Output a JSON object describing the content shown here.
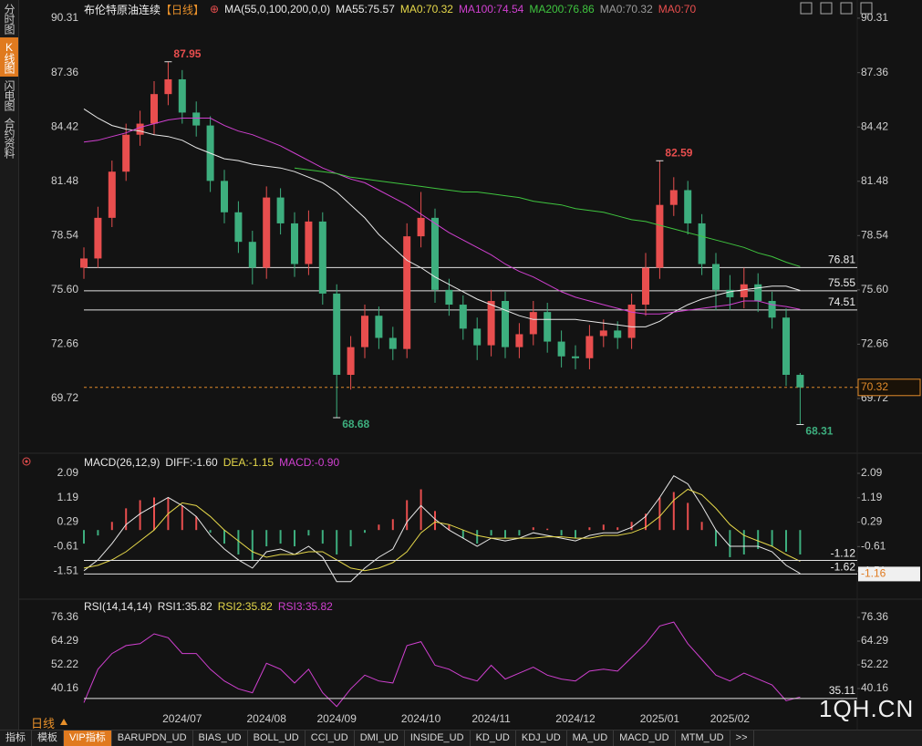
{
  "chart_data": {
    "type": "candlestick",
    "title": "布伦特原油连续",
    "period": "【日线】",
    "ma_params": "MA(55,0,100,200,0,0)",
    "ma_legend": [
      {
        "label": "MA55:75.57",
        "color": "#e8e8e8"
      },
      {
        "label": "MA0:70.32",
        "color": "#e6d84a"
      },
      {
        "label": "MA100:74.54",
        "color": "#d040d0"
      },
      {
        "label": "MA200:76.86",
        "color": "#3fc43f"
      },
      {
        "label": "MA0:70.32",
        "color": "#9a9a9a"
      },
      {
        "label": "MA0:70",
        "color": "#e84e4e"
      }
    ],
    "up_color": "#e84e4e",
    "down_color": "#3dae7e",
    "categories": [
      null,
      null,
      null,
      null,
      null,
      null,
      null,
      "2024/07",
      null,
      null,
      null,
      null,
      null,
      "2024/08",
      null,
      null,
      null,
      null,
      "2024/09",
      null,
      null,
      null,
      null,
      null,
      "2024/10",
      null,
      null,
      null,
      null,
      "2024/11",
      null,
      null,
      null,
      null,
      null,
      "2024/12",
      null,
      null,
      null,
      null,
      null,
      "2025/01",
      null,
      null,
      null,
      null,
      "2025/02",
      null,
      null,
      null,
      null,
      null
    ],
    "open": [
      76.8,
      77.3,
      79.5,
      82.0,
      84.0,
      84.6,
      86.2,
      87.0,
      85.2,
      84.5,
      81.5,
      79.8,
      78.2,
      76.8,
      80.6,
      79.2,
      77.0,
      79.3,
      75.4,
      71.0,
      72.5,
      74.2,
      73.0,
      72.4,
      78.5,
      79.5,
      75.6,
      74.8,
      73.5,
      72.6,
      75.0,
      72.5,
      73.2,
      74.4,
      72.8,
      72.0,
      71.9,
      73.1,
      73.4,
      73.0,
      74.8,
      76.8,
      80.2,
      81.0,
      79.2,
      77.0,
      75.6,
      75.2,
      75.9,
      75.0,
      74.1,
      71.0
    ],
    "high": [
      77.9,
      80.1,
      82.6,
      84.6,
      85.3,
      86.9,
      87.95,
      87.5,
      85.8,
      85.0,
      82.1,
      80.4,
      78.8,
      81.2,
      81.1,
      79.8,
      79.9,
      79.8,
      75.9,
      73.1,
      74.8,
      74.7,
      73.6,
      79.2,
      80.9,
      80.0,
      76.2,
      75.3,
      74.1,
      75.6,
      75.5,
      73.8,
      75.0,
      74.9,
      73.4,
      72.6,
      73.7,
      74.0,
      73.9,
      75.4,
      77.6,
      82.59,
      81.7,
      81.5,
      79.7,
      77.6,
      76.4,
      76.8,
      76.5,
      75.5,
      74.6,
      71.1
    ],
    "low": [
      76.2,
      76.8,
      79.0,
      81.5,
      83.4,
      84.0,
      85.6,
      84.6,
      83.9,
      80.9,
      79.2,
      77.6,
      75.9,
      76.2,
      78.6,
      76.3,
      76.4,
      74.8,
      68.68,
      70.2,
      71.9,
      72.4,
      71.8,
      71.9,
      77.9,
      74.9,
      74.2,
      72.9,
      71.8,
      72.0,
      71.9,
      71.9,
      72.6,
      72.2,
      71.4,
      71.3,
      71.3,
      72.5,
      72.4,
      72.4,
      74.2,
      76.2,
      79.6,
      78.6,
      76.4,
      74.5,
      74.5,
      74.6,
      74.4,
      73.5,
      70.4,
      68.31
    ],
    "close": [
      77.3,
      79.5,
      82.0,
      84.0,
      84.6,
      86.2,
      87.0,
      85.2,
      84.5,
      81.5,
      79.8,
      78.2,
      76.8,
      80.6,
      79.2,
      77.0,
      79.3,
      75.4,
      71.0,
      72.5,
      74.2,
      73.0,
      72.4,
      78.5,
      79.5,
      75.6,
      74.8,
      73.5,
      72.6,
      75.0,
      72.5,
      73.2,
      74.4,
      72.8,
      72.0,
      71.9,
      73.1,
      73.4,
      73.0,
      74.8,
      76.8,
      80.2,
      81.0,
      79.2,
      77.0,
      75.6,
      75.2,
      75.9,
      75.0,
      74.1,
      71.0,
      70.32
    ],
    "ma_lines": [
      {
        "color": "#e8e8e8",
        "values": [
          85.4,
          84.9,
          84.5,
          84.3,
          84.2,
          84.0,
          83.9,
          83.7,
          83.3,
          83.0,
          82.7,
          82.6,
          82.4,
          82.3,
          82.2,
          82.0,
          81.7,
          81.4,
          80.9,
          80.2,
          79.5,
          78.6,
          77.9,
          77.2,
          76.8,
          76.3,
          75.9,
          75.5,
          75.1,
          74.8,
          74.5,
          74.2,
          74.0,
          74.0,
          74.0,
          74.0,
          73.9,
          73.8,
          73.7,
          73.6,
          73.6,
          73.9,
          74.4,
          74.8,
          75.1,
          75.3,
          75.5,
          75.6,
          75.7,
          75.8,
          75.8,
          75.57
        ]
      },
      {
        "color": "#d040d0",
        "values": [
          83.6,
          83.7,
          83.9,
          84.1,
          84.4,
          84.6,
          84.8,
          84.9,
          84.9,
          84.9,
          84.5,
          84.2,
          84.0,
          83.7,
          83.4,
          83.0,
          82.6,
          82.2,
          81.9,
          81.6,
          81.4,
          81.0,
          80.6,
          80.2,
          79.7,
          79.2,
          78.7,
          78.3,
          77.9,
          77.5,
          77.0,
          76.6,
          76.3,
          75.9,
          75.5,
          75.2,
          75.0,
          74.8,
          74.6,
          74.4,
          74.3,
          74.3,
          74.4,
          74.5,
          74.6,
          74.7,
          74.8,
          75.0,
          75.0,
          74.8,
          74.7,
          74.54
        ]
      },
      {
        "color": "#3fc43f",
        "values": [
          null,
          null,
          null,
          null,
          null,
          null,
          null,
          null,
          null,
          null,
          null,
          null,
          null,
          null,
          null,
          82.2,
          82.1,
          82.0,
          81.9,
          81.7,
          81.6,
          81.5,
          81.4,
          81.3,
          81.2,
          81.1,
          81.0,
          80.9,
          80.9,
          80.8,
          80.7,
          80.6,
          80.4,
          80.3,
          80.2,
          80.0,
          79.9,
          79.8,
          79.6,
          79.4,
          79.3,
          79.1,
          78.9,
          78.7,
          78.5,
          78.3,
          78.1,
          77.9,
          77.6,
          77.4,
          77.1,
          76.86
        ]
      }
    ],
    "ylim": [
      67.1,
      90.8
    ],
    "yticks": [
      90.31,
      87.36,
      84.42,
      81.48,
      78.54,
      {
        "value": 75.6,
        "label": "75.60"
      },
      72.66,
      69.72
    ],
    "high_marks": [
      87.95,
      82.59
    ],
    "low_marks": [
      68.68,
      68.31
    ],
    "levels": [
      76.81,
      75.55,
      74.51
    ],
    "last": 70.32,
    "last_color": "#e08a2a",
    "macd": {
      "title": "MACD(26,12,9)",
      "legend": [
        {
          "label": "DIFF:-1.60",
          "color": "#e8e8e8"
        },
        {
          "label": "DEA:-1.15",
          "color": "#e6d84a"
        },
        {
          "label": "MACD:-0.90",
          "color": "#d040d0"
        }
      ],
      "ylim": [
        -2.48,
        2.56
      ],
      "yticks": [
        2.09,
        1.19,
        0.29,
        -0.61,
        -1.51
      ],
      "hist": [
        -0.5,
        -0.2,
        0.3,
        0.8,
        1.1,
        1.2,
        1.2,
        0.9,
        0.5,
        -0.1,
        -0.5,
        -0.9,
        -1.1,
        -0.6,
        -0.5,
        -0.6,
        -0.2,
        -0.5,
        -0.9,
        -0.6,
        -0.1,
        0.2,
        0.4,
        1.1,
        1.5,
        0.7,
        0.2,
        -0.3,
        -0.5,
        -0.2,
        -0.3,
        -0.2,
        0.1,
        0.05,
        -0.2,
        -0.3,
        0.1,
        0.2,
        0.1,
        0.3,
        0.6,
        1.2,
        1.4,
        1.0,
        0.3,
        -0.6,
        -1.0,
        -0.9,
        -0.7,
        -0.6,
        -0.8,
        -0.9
      ],
      "diff": [
        -1.5,
        -1.1,
        -0.5,
        0.2,
        0.6,
        0.9,
        1.2,
        0.9,
        0.5,
        -0.2,
        -0.7,
        -1.1,
        -1.4,
        -0.8,
        -0.7,
        -0.9,
        -0.6,
        -1.0,
        -1.9,
        -1.9,
        -1.4,
        -1.0,
        -0.7,
        0.3,
        0.9,
        0.4,
        0.0,
        -0.3,
        -0.6,
        -0.3,
        -0.4,
        -0.3,
        -0.1,
        -0.2,
        -0.3,
        -0.4,
        -0.2,
        -0.1,
        -0.1,
        0.1,
        0.5,
        1.2,
        2.0,
        1.7,
        0.9,
        0.0,
        -0.6,
        -0.6,
        -0.6,
        -0.8,
        -1.3,
        -1.6
      ],
      "dea": [
        -1.4,
        -1.3,
        -1.1,
        -0.8,
        -0.4,
        0.0,
        0.6,
        1.0,
        0.9,
        0.5,
        0.0,
        -0.4,
        -0.8,
        -1.0,
        -0.9,
        -0.9,
        -0.8,
        -0.8,
        -1.1,
        -1.4,
        -1.5,
        -1.4,
        -1.2,
        -0.8,
        -0.1,
        0.3,
        0.2,
        0.0,
        -0.2,
        -0.3,
        -0.3,
        -0.3,
        -0.3,
        -0.25,
        -0.25,
        -0.3,
        -0.3,
        -0.2,
        -0.2,
        -0.1,
        0.1,
        0.5,
        1.1,
        1.5,
        1.3,
        0.8,
        0.2,
        -0.2,
        -0.4,
        -0.6,
        -0.9,
        -1.15
      ],
      "levels": [
        -1.12,
        -1.62
      ],
      "marker": -1.16
    },
    "rsi": {
      "title": "RSI(14,14,14)",
      "legend": [
        {
          "label": "RSI1:35.82",
          "color": "#e8e8e8"
        },
        {
          "label": "RSI2:35.82",
          "color": "#e6d84a"
        },
        {
          "label": "RSI3:35.82",
          "color": "#d040d0"
        }
      ],
      "color": "#d040d0",
      "ylim": [
        28.55,
        81.93
      ],
      "yticks": [
        76.36,
        64.29,
        52.22,
        40.16
      ],
      "values": [
        33,
        50,
        58,
        62,
        63,
        68,
        66,
        58,
        58,
        50,
        44,
        40,
        38,
        53,
        50,
        43,
        50,
        38,
        31,
        40,
        47,
        44,
        43,
        62,
        64,
        52,
        50,
        46,
        44,
        52,
        45,
        48,
        51,
        47,
        45,
        44,
        49,
        50,
        49,
        56,
        63,
        72,
        74,
        63,
        55,
        47,
        44,
        48,
        45,
        42,
        34,
        35.82
      ],
      "level": 35.11
    }
  },
  "sidebar": [
    "分时图",
    "K线图",
    "闪电图",
    "合约资料"
  ],
  "sidebar_active": 1,
  "watermark": "1QH.CN",
  "toolbar": {
    "period": "日线",
    "tabs": [
      "指标",
      "模板",
      "VIP指标",
      "BARUPDN_UD",
      "BIAS_UD",
      "BOLL_UD",
      "CCI_UD",
      "DMI_UD",
      "INSIDE_UD",
      "KD_UD",
      "KDJ_UD",
      "MA_UD",
      "MACD_UD",
      "MTM_UD",
      ">>"
    ],
    "active": 2
  }
}
